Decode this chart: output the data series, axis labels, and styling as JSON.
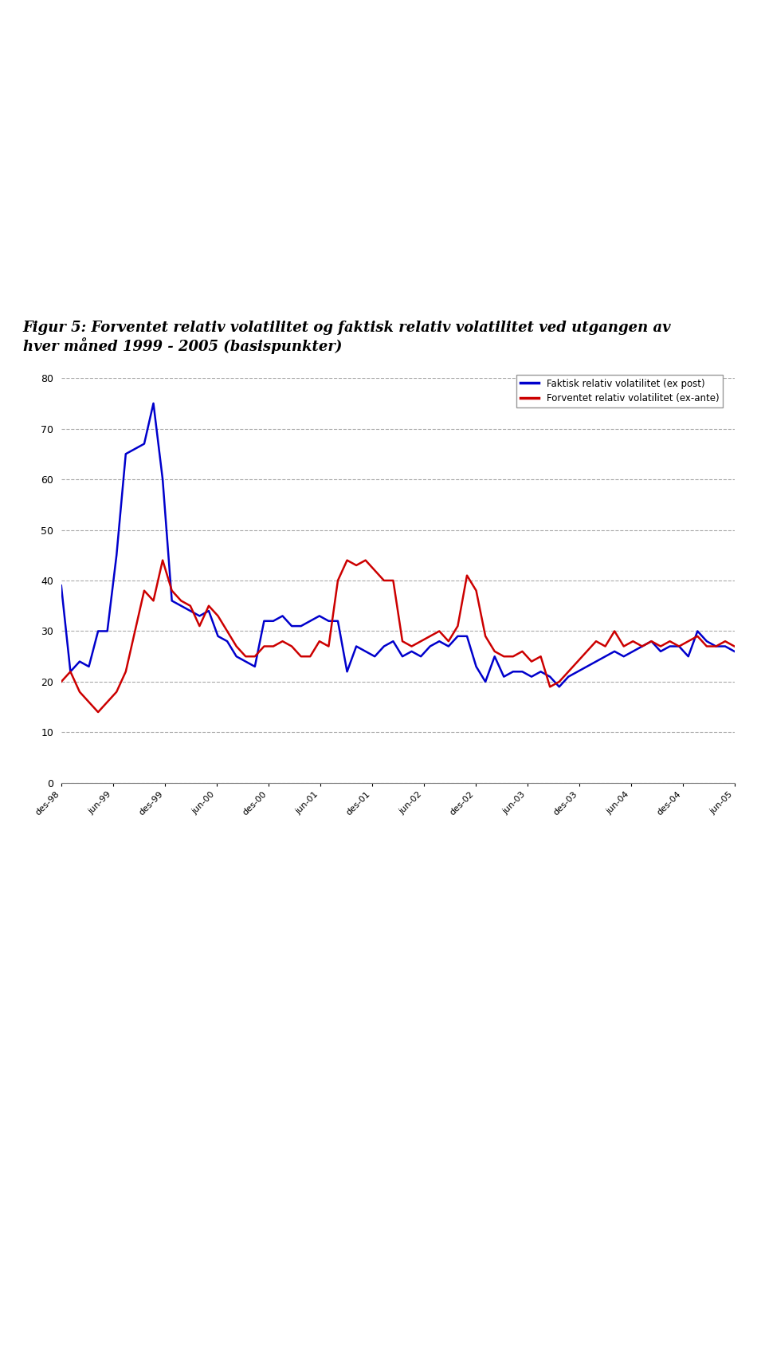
{
  "title": "Figur 5: Forventet relativ volatilitet og faktisk relativ volatilitet ved utgangen av\nhver måned 1999 - 2005 (basispunkter)",
  "legend_blue": "Faktisk relativ volatilitet (ex post)",
  "legend_red": "Forventet relativ volatilitet (ex-ante)",
  "ylim": [
    0,
    80
  ],
  "yticks": [
    0,
    10,
    20,
    30,
    40,
    50,
    60,
    70,
    80
  ],
  "x_labels": [
    "des-98",
    "jun-99",
    "des-99",
    "jun-00",
    "des-00",
    "jun-01",
    "des-01",
    "jun-02",
    "des-02",
    "jun-03",
    "des-03",
    "jun-04",
    "des-04",
    "jun-05"
  ],
  "blue_data": [
    39,
    22,
    24,
    23,
    30,
    30,
    45,
    65,
    66,
    67,
    75,
    60,
    36,
    35,
    34,
    33,
    34,
    29,
    28,
    25,
    24,
    23,
    32,
    32,
    33,
    31,
    31,
    32,
    33,
    32,
    32,
    22,
    27,
    26,
    25,
    27,
    28,
    25,
    26,
    25,
    27,
    28,
    27,
    29,
    29,
    23,
    20,
    25,
    21,
    22,
    22,
    21,
    22,
    21,
    19,
    21,
    22,
    23,
    24,
    25,
    26,
    25,
    26,
    27,
    28,
    26,
    27,
    27,
    25,
    30,
    28,
    27,
    27,
    26
  ],
  "red_data": [
    20,
    22,
    18,
    16,
    14,
    16,
    18,
    22,
    30,
    38,
    36,
    44,
    38,
    36,
    35,
    31,
    35,
    33,
    30,
    27,
    25,
    25,
    27,
    27,
    28,
    27,
    25,
    25,
    28,
    27,
    40,
    44,
    43,
    44,
    42,
    40,
    40,
    28,
    27,
    28,
    29,
    30,
    28,
    31,
    41,
    38,
    29,
    26,
    25,
    25,
    26,
    24,
    25,
    19,
    20,
    22,
    24,
    26,
    28,
    27,
    30,
    27,
    28,
    27,
    28,
    27,
    28,
    27,
    28,
    29,
    27,
    27,
    28,
    27
  ],
  "bg_color": "#ffffff",
  "grid_color": "#aaaaaa",
  "blue_color": "#0000cc",
  "red_color": "#cc0000"
}
